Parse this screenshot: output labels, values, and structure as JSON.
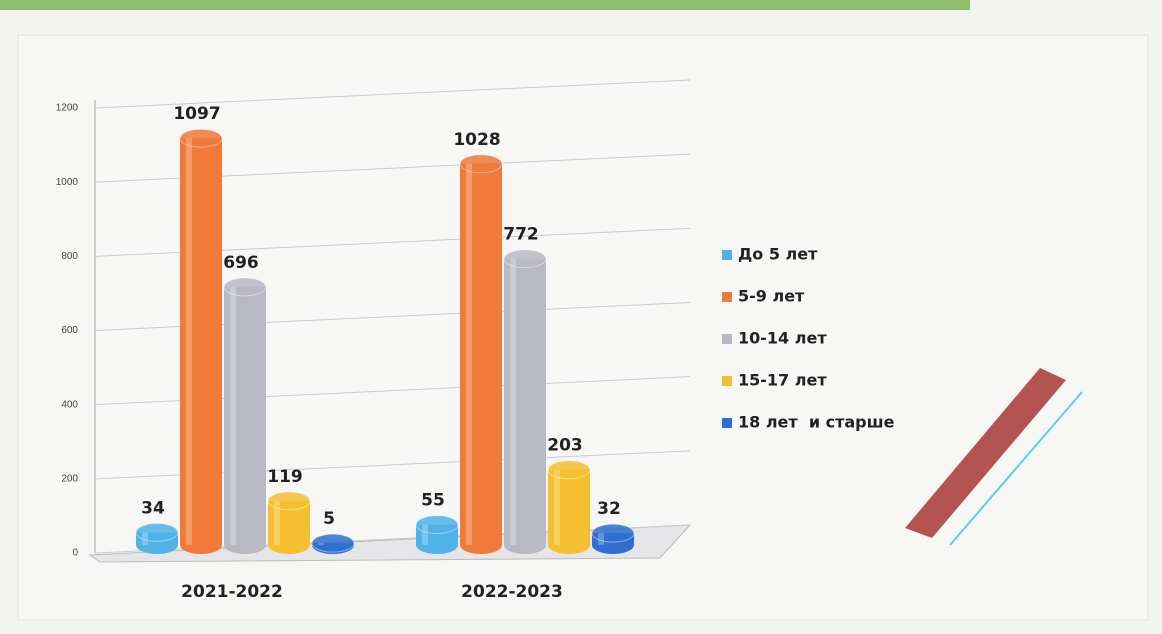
{
  "chart_data": {
    "type": "bar",
    "categories": [
      "2021-2022",
      "2022-2023"
    ],
    "series": [
      {
        "name": "До 5 лет",
        "color": "#4fb3e8",
        "values": [
          34,
          55
        ]
      },
      {
        "name": "5-9 лет",
        "color": "#f07a3a",
        "values": [
          1097,
          1028
        ]
      },
      {
        "name": "10-14 лет",
        "color": "#b9b9c6",
        "values": [
          696,
          772
        ]
      },
      {
        "name": "15-17 лет",
        "color": "#f5c030",
        "values": [
          119,
          203
        ]
      },
      {
        "name": "18 лет  и старше",
        "color": "#2f6fd0",
        "values": [
          5,
          32
        ]
      }
    ],
    "ylim": [
      0,
      1200
    ],
    "yticks": [
      0,
      200,
      400,
      600,
      800,
      1000,
      1200
    ],
    "grid": true,
    "legend": "right"
  }
}
